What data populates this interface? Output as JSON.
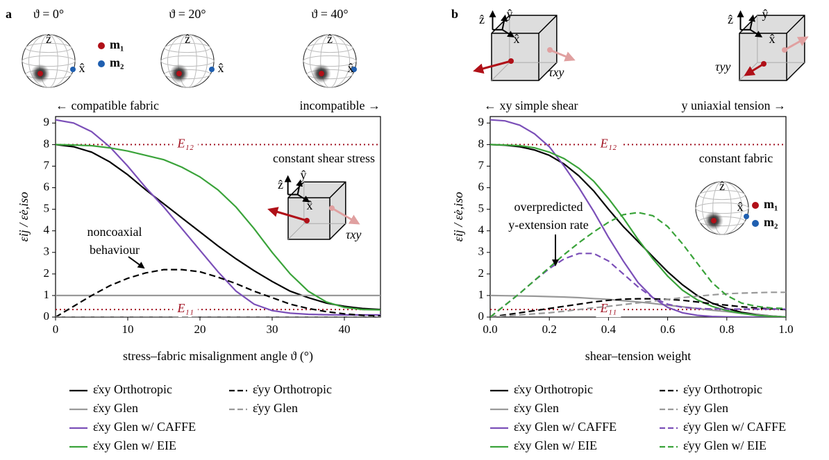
{
  "chart_data": [
    {
      "type": "line",
      "x_label": "stress–fabric misalignment angle ϑ (°)",
      "y_label": "ε̇ij / ε̇e,iso",
      "xlim": [
        0,
        45
      ],
      "ylim": [
        0,
        9.3
      ],
      "xticks": [
        0,
        10,
        20,
        30,
        40
      ],
      "yticks": [
        0,
        1,
        2,
        3,
        4,
        5,
        6,
        7,
        8,
        9
      ],
      "x": [
        0,
        2.5,
        5,
        7.5,
        10,
        12.5,
        15,
        17.5,
        20,
        22.5,
        25,
        27.5,
        30,
        32.5,
        35,
        37.5,
        40,
        42.5,
        45
      ],
      "series": [
        {
          "name": "ε̇xy Orthotropic",
          "color": "#000000",
          "linestyle": "solid",
          "values": [
            8,
            7.9,
            7.65,
            7.2,
            6.6,
            5.9,
            5.25,
            4.6,
            3.95,
            3.3,
            2.7,
            2.15,
            1.65,
            1.2,
            0.9,
            0.65,
            0.5,
            0.4,
            0.35
          ]
        },
        {
          "name": "ε̇xy Glen",
          "color": "#999999",
          "linestyle": "solid",
          "values": [
            1,
            1,
            1,
            1,
            1,
            1,
            1,
            1,
            1,
            1,
            1,
            1,
            1,
            1,
            1,
            1,
            1,
            1,
            1
          ]
        },
        {
          "name": "ε̇xy Glen w/ CAFFE",
          "color": "#7b4fb8",
          "linestyle": "solid",
          "values": [
            9.15,
            9.0,
            8.6,
            7.9,
            7.0,
            6.0,
            5.1,
            4.1,
            3.1,
            2.1,
            1.2,
            0.6,
            0.3,
            0.18,
            0.13,
            0.11,
            0.1,
            0.1,
            0.1
          ]
        },
        {
          "name": "ε̇xy Glen w/ EIE",
          "color": "#3aa33a",
          "linestyle": "solid",
          "values": [
            8,
            7.98,
            7.95,
            7.85,
            7.7,
            7.5,
            7.3,
            6.95,
            6.5,
            5.9,
            5.1,
            4.1,
            3.0,
            2.0,
            1.2,
            0.7,
            0.45,
            0.35,
            0.33
          ]
        },
        {
          "name": "ε̇yy Orthotropic",
          "color": "#000000",
          "linestyle": "dashed",
          "values": [
            0,
            0.5,
            1.0,
            1.45,
            1.8,
            2.05,
            2.2,
            2.2,
            2.1,
            1.85,
            1.55,
            1.2,
            0.9,
            0.6,
            0.4,
            0.25,
            0.15,
            0.08,
            0.05
          ]
        },
        {
          "name": "ε̇yy Glen",
          "color": "#999999",
          "linestyle": "dashed",
          "values": [
            0,
            0,
            0,
            0,
            0,
            0,
            0,
            0,
            0,
            0,
            0,
            0,
            0,
            0,
            0,
            0,
            0,
            0,
            0
          ]
        }
      ],
      "reference_lines": [
        {
          "label": "E₁₂",
          "value": 8,
          "color": "#a01020"
        },
        {
          "label": "E₁₁",
          "value": 0.35,
          "color": "#a01020"
        }
      ],
      "annotations": [
        "a",
        "ϑ = 0°",
        "ϑ = 20°",
        "ϑ = 40°",
        "m₁",
        "m₂",
        "← compatible fabric",
        "incompatible →",
        "constant shear stress",
        "τxy",
        "noncoaxial",
        "behaviour",
        "ẑ",
        "ẑ",
        "ẑ",
        "x̂",
        "x̂",
        "x̂",
        "ẑ",
        "ŷ",
        "x̂"
      ]
    },
    {
      "type": "line",
      "x_label": "shear–tension weight",
      "y_label": "ε̇ij / ε̇e,iso",
      "xlim": [
        0,
        1
      ],
      "ylim": [
        0,
        9.3
      ],
      "xticks": [
        {
          "value": 0,
          "label": "0.0"
        },
        0.2,
        0.4,
        0.6,
        0.8,
        {
          "value": 1,
          "label": "1.0"
        }
      ],
      "yticks": [
        0,
        1,
        2,
        3,
        4,
        5,
        6,
        7,
        8,
        9
      ],
      "x": [
        0,
        0.05,
        0.1,
        0.15,
        0.2,
        0.25,
        0.3,
        0.35,
        0.4,
        0.45,
        0.5,
        0.55,
        0.6,
        0.65,
        0.7,
        0.75,
        0.8,
        0.85,
        0.9,
        0.95,
        1
      ],
      "series": [
        {
          "name": "ε̇xy Orthotropic",
          "color": "#000000",
          "linestyle": "solid",
          "values": [
            8,
            7.97,
            7.9,
            7.75,
            7.5,
            7.1,
            6.55,
            5.85,
            5.0,
            4.2,
            3.5,
            2.8,
            2.1,
            1.5,
            1.0,
            0.65,
            0.4,
            0.22,
            0.12,
            0.05,
            0
          ]
        },
        {
          "name": "ε̇xy Glen",
          "color": "#999999",
          "linestyle": "solid",
          "values": [
            1,
            0.99,
            0.98,
            0.97,
            0.95,
            0.93,
            0.9,
            0.86,
            0.82,
            0.76,
            0.7,
            0.63,
            0.55,
            0.48,
            0.4,
            0.32,
            0.25,
            0.17,
            0.1,
            0.05,
            0
          ]
        },
        {
          "name": "ε̇xy Glen w/ CAFFE",
          "color": "#7b4fb8",
          "linestyle": "solid",
          "values": [
            9.15,
            9.1,
            8.9,
            8.5,
            7.9,
            7.0,
            6.0,
            4.9,
            3.7,
            2.6,
            1.6,
            0.9,
            0.45,
            0.2,
            0.08,
            0.03,
            0.01,
            0,
            0,
            0,
            0
          ]
        },
        {
          "name": "ε̇xy Glen w/ EIE",
          "color": "#3aa33a",
          "linestyle": "solid",
          "values": [
            8,
            7.98,
            7.95,
            7.85,
            7.65,
            7.35,
            6.9,
            6.3,
            5.5,
            4.6,
            3.6,
            2.7,
            1.9,
            1.25,
            0.8,
            0.5,
            0.3,
            0.17,
            0.08,
            0.03,
            0
          ]
        },
        {
          "name": "ε̇yy Orthotropic",
          "color": "#000000",
          "linestyle": "dashed",
          "values": [
            0,
            0.1,
            0.2,
            0.3,
            0.4,
            0.5,
            0.6,
            0.7,
            0.78,
            0.83,
            0.85,
            0.85,
            0.82,
            0.78,
            0.7,
            0.62,
            0.55,
            0.48,
            0.42,
            0.38,
            0.35
          ]
        },
        {
          "name": "ε̇yy Glen",
          "color": "#999999",
          "linestyle": "dashed",
          "values": [
            0,
            0.05,
            0.1,
            0.15,
            0.2,
            0.27,
            0.35,
            0.43,
            0.5,
            0.58,
            0.66,
            0.74,
            0.82,
            0.9,
            0.97,
            1.03,
            1.08,
            1.11,
            1.13,
            1.15,
            1.15
          ]
        },
        {
          "name": "ε̇yy Glen w/ CAFFE",
          "color": "#7b4fb8",
          "linestyle": "dashed",
          "values": [
            0,
            0.55,
            1.1,
            1.7,
            2.25,
            2.7,
            2.95,
            2.95,
            2.6,
            2.0,
            1.4,
            0.9,
            0.6,
            0.45,
            0.4,
            0.38,
            0.37,
            0.37,
            0.37,
            0.37,
            0.37
          ]
        },
        {
          "name": "ε̇yy Glen w/ EIE",
          "color": "#3aa33a",
          "linestyle": "dashed",
          "values": [
            0,
            0.55,
            1.1,
            1.7,
            2.3,
            2.9,
            3.45,
            3.95,
            4.4,
            4.75,
            4.85,
            4.7,
            4.2,
            3.4,
            2.5,
            1.6,
            1.0,
            0.65,
            0.5,
            0.42,
            0.4
          ]
        }
      ],
      "reference_lines": [
        {
          "label": "E₁₂",
          "value": 8,
          "color": "#a01020"
        },
        {
          "label": "E₁₁",
          "value": 0.35,
          "color": "#a01020"
        }
      ],
      "annotations": [
        "b",
        "τxy",
        "τyy",
        "← xy simple shear",
        "y uniaxial tension →",
        "constant fabric",
        "m₁",
        "m₂",
        "overpredicted",
        "y-extension rate",
        "ẑ",
        "ŷ",
        "x̂",
        "ẑ",
        "ŷ",
        "x̂",
        "ẑ",
        "x̂"
      ]
    }
  ]
}
